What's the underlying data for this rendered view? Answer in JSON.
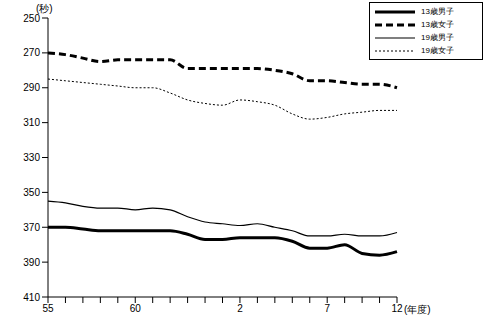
{
  "chart_data": {
    "type": "line",
    "y_label": "(秒)",
    "x_label": "(年度)",
    "categories": [
      "55",
      null,
      null,
      null,
      null,
      "60",
      null,
      null,
      null,
      null,
      null,
      "2",
      null,
      null,
      null,
      null,
      "7",
      null,
      null,
      null,
      "12"
    ],
    "ylim": [
      410,
      250
    ],
    "yticks": [
      250,
      270,
      290,
      310,
      330,
      350,
      370,
      390,
      410
    ],
    "grid": false,
    "legend": "upper right",
    "series": [
      {
        "name": "13歳男子",
        "color": "#000000",
        "line_style": "solid",
        "values": [
          370,
          370,
          371,
          372,
          372,
          372,
          372,
          372,
          374,
          377,
          377,
          376,
          376,
          376,
          378,
          382,
          382,
          380,
          385,
          386,
          384
        ]
      },
      {
        "name": "13歳女子",
        "color": "#000000",
        "line_style": "dashed",
        "values": [
          270,
          271,
          273,
          275,
          274,
          274,
          274,
          274,
          279,
          279,
          279,
          279,
          279,
          280,
          282,
          286,
          286,
          287,
          288,
          288,
          290
        ]
      },
      {
        "name": "19歳男子",
        "color": "#000000",
        "line_style": "solid",
        "values": [
          355,
          356,
          358,
          359,
          359,
          360,
          359,
          360,
          364,
          367,
          368,
          369,
          368,
          370,
          372,
          375,
          375,
          374,
          375,
          375,
          373
        ]
      },
      {
        "name": "19歳女子",
        "color": "#000000",
        "line_style": "dotted",
        "values": [
          285,
          286,
          287,
          288,
          289,
          290,
          290,
          293,
          297,
          299,
          300,
          297,
          298,
          300,
          305,
          308,
          307,
          305,
          304,
          303,
          303
        ]
      }
    ]
  }
}
